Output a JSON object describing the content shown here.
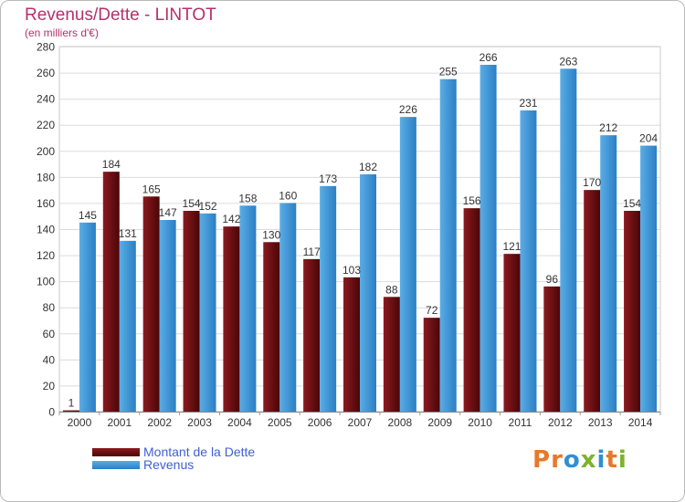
{
  "title": "Revenus/Dette - LINTOT",
  "subtitle": "(en milliers d'€)",
  "colors": {
    "dette": "#8b1a1f",
    "dette_dark": "#4a0608",
    "revenus": "#5aade6",
    "revenus_dark": "#2b7fc3",
    "grid": "#dcdcdc",
    "title": "#b5306c",
    "legend_text": "#3f5fd6"
  },
  "legend": {
    "dette": "Montant de la Dette",
    "revenus": "Revenus"
  },
  "logo": {
    "text": "Proxiti",
    "letters": [
      "P",
      "r",
      "o",
      "x",
      "i",
      "t",
      "i"
    ],
    "letter_colors": [
      "#e8782a",
      "#e8782a",
      "#2e8fd4",
      "#7cb32b",
      "#2e8fd4",
      "#e8782a",
      "#7cb32b"
    ]
  },
  "chart_data": {
    "type": "bar",
    "title": "Revenus/Dette - LINTOT",
    "subtitle": "(en milliers d'€)",
    "categories": [
      "2000",
      "2001",
      "2002",
      "2003",
      "2004",
      "2005",
      "2006",
      "2007",
      "2008",
      "2009",
      "2010",
      "2011",
      "2012",
      "2013",
      "2014"
    ],
    "series": [
      {
        "name": "Montant de la Dette",
        "values": [
          1,
          184,
          165,
          154,
          142,
          130,
          117,
          103,
          88,
          72,
          156,
          121,
          96,
          170,
          154
        ]
      },
      {
        "name": "Revenus",
        "values": [
          145,
          131,
          147,
          152,
          158,
          160,
          173,
          182,
          226,
          255,
          266,
          231,
          263,
          212,
          204
        ]
      }
    ],
    "ylim": [
      0,
      280
    ],
    "yticks": [
      0,
      20,
      40,
      60,
      80,
      100,
      120,
      140,
      160,
      180,
      200,
      220,
      240,
      260,
      280
    ],
    "grid": true,
    "legend_position": "bottom-left"
  }
}
